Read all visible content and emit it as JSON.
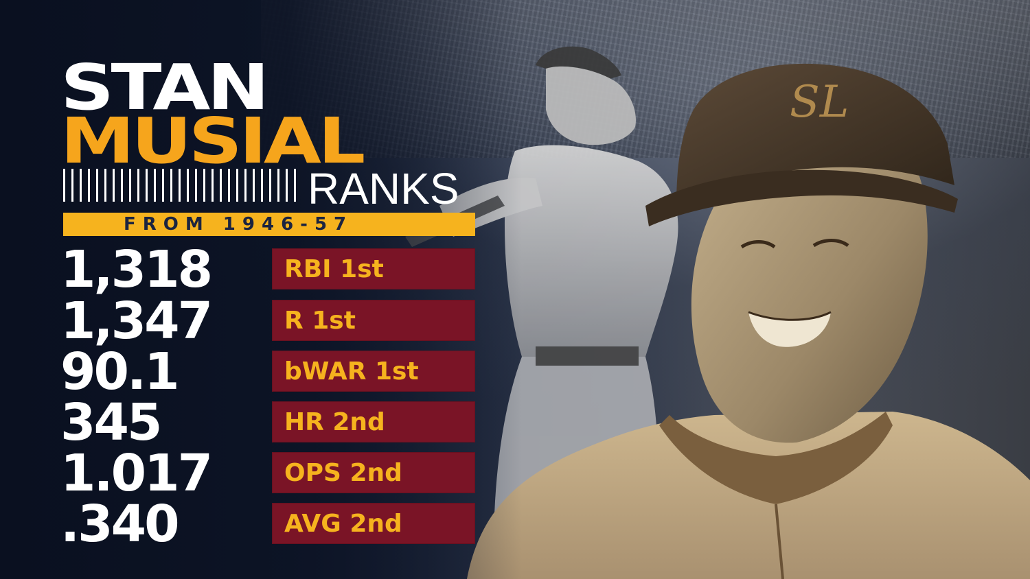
{
  "header": {
    "first_name": "STAN",
    "last_name": "MUSIAL",
    "ranks_word": "RANKS",
    "period": "FROM 1946-57"
  },
  "stats": [
    {
      "value": "1,318",
      "label": "RBI 1st"
    },
    {
      "value": "1,347",
      "label": "R 1st"
    },
    {
      "value": "90.1",
      "label": "bWAR 1st"
    },
    {
      "value": "345",
      "label": "HR 2nd"
    },
    {
      "value": "1.017",
      "label": "OPS 2nd"
    },
    {
      "value": ".340",
      "label": "AVG 2nd"
    }
  ],
  "colors": {
    "accent_gold": "#f6b31e",
    "label_box_maroon": "#7a1426",
    "background_navy": "#0e1526",
    "text_white": "#ffffff"
  }
}
